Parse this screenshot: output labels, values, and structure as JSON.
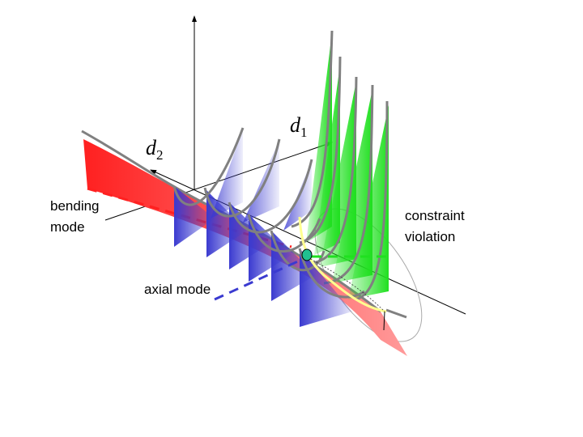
{
  "labels": {
    "d1": "d",
    "d1_sub": "1",
    "d2": "d",
    "d2_sub": "2",
    "bending_line1": "bending",
    "bending_line2": "mode",
    "axial": "axial mode",
    "constraint_line1": "constraint",
    "constraint_line2": "violation"
  },
  "colors": {
    "bending": "#ff2020",
    "axial": "#3a3ad0",
    "constraint": "#20e020",
    "curve": "#808080",
    "point": "#20c090",
    "path": "#ffff90"
  }
}
